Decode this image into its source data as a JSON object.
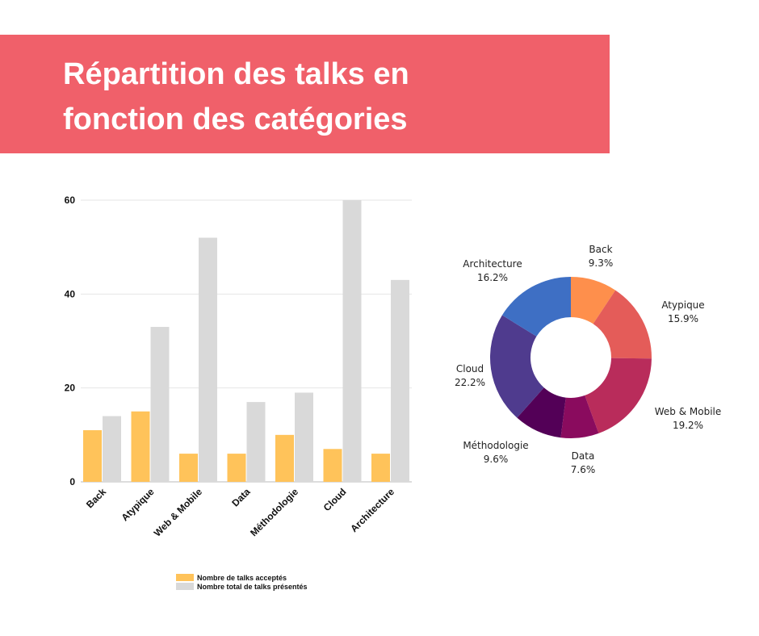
{
  "title": "Répartition des talks en\nfonction des catégories",
  "colors": {
    "banner": "#f0606a",
    "accepted": "#ffc35a",
    "total": "#d9d9d9"
  },
  "chart_data": [
    {
      "type": "bar",
      "categories": [
        "Back",
        "Atypique",
        "Web & Mobile",
        "Data",
        "Méthodologie",
        "Cloud",
        "Architecture"
      ],
      "series": [
        {
          "name": "Nombre de talks acceptés",
          "values": [
            11,
            15,
            6,
            6,
            10,
            7,
            6
          ],
          "color": "#ffc35a"
        },
        {
          "name": "Nombre total de talks présentés",
          "values": [
            14,
            33,
            52,
            17,
            19,
            60,
            43
          ],
          "color": "#d9d9d9"
        }
      ],
      "yticks": [
        0,
        20,
        40,
        60
      ],
      "ylim": [
        0,
        60
      ],
      "grid": true,
      "legend": "bottom"
    },
    {
      "type": "pie",
      "donut": true,
      "slices": [
        {
          "label": "Back",
          "pct": "9.3%",
          "value": 9.3,
          "color": "#fe8f4c"
        },
        {
          "label": "Atypique",
          "pct": "15.9%",
          "value": 15.9,
          "color": "#e45c59"
        },
        {
          "label": "Web & Mobile",
          "pct": "19.2%",
          "value": 19.2,
          "color": "#b92c5b"
        },
        {
          "label": "Data",
          "pct": "7.6%",
          "value": 7.6,
          "color": "#8a0b5e"
        },
        {
          "label": "Méthodologie",
          "pct": "9.6%",
          "value": 9.6,
          "color": "#530057"
        },
        {
          "label": "Cloud",
          "pct": "22.2%",
          "value": 22.2,
          "color": "#4f3b8e"
        },
        {
          "label": "Architecture",
          "pct": "16.2%",
          "value": 16.2,
          "color": "#3e6fc4"
        }
      ]
    }
  ]
}
